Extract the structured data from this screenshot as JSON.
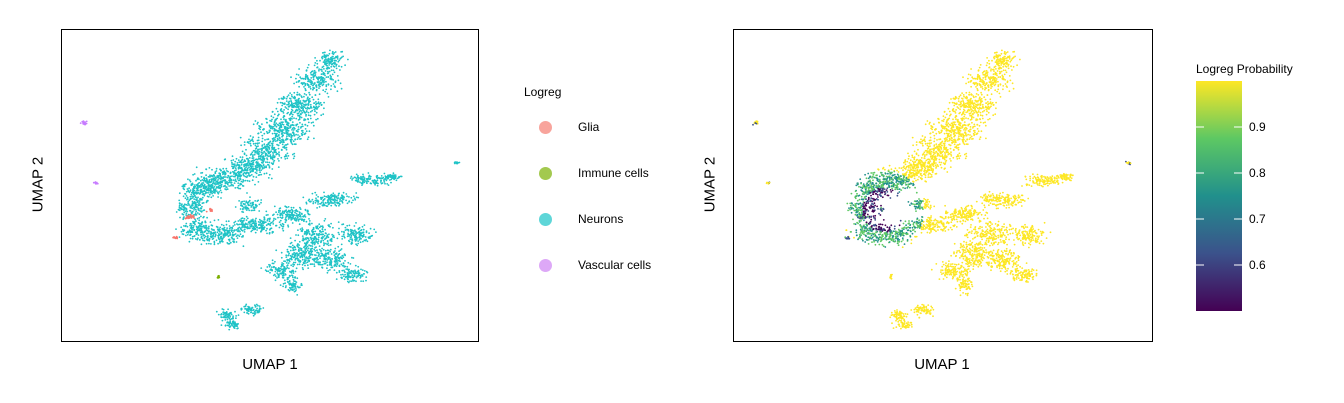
{
  "chart_data": [
    {
      "type": "scatter",
      "xlabel": "UMAP 1",
      "ylabel": "UMAP 2",
      "legend": {
        "title": "Logreg",
        "placement": "right",
        "entries": [
          {
            "label": "Glia",
            "color": "#F8766D"
          },
          {
            "label": "Immune cells",
            "color": "#A3C94F"
          },
          {
            "label": "Neurons",
            "color": "#4CCFD2"
          },
          {
            "label": "Vascular cells",
            "color": "#D89CF6"
          }
        ]
      },
      "series": [
        {
          "name": "Neurons",
          "color": "#1FC3C6"
        },
        {
          "name": "Glia",
          "color": "#F8766D"
        },
        {
          "name": "Immune cells",
          "color": "#7CAE00"
        },
        {
          "name": "Vascular cells",
          "color": "#C77CFF"
        }
      ]
    },
    {
      "type": "scatter",
      "xlabel": "UMAP 1",
      "ylabel": "UMAP 2",
      "colorbar": {
        "title": "Logreg Probability",
        "placement": "right",
        "ticks": [
          "0.6",
          "0.7",
          "0.8",
          "0.9"
        ],
        "range": [
          0.5,
          1.0
        ],
        "colormap": "viridis",
        "colors": [
          "#440154",
          "#3B528B",
          "#21908C",
          "#5DC863",
          "#FDE725"
        ]
      }
    }
  ]
}
